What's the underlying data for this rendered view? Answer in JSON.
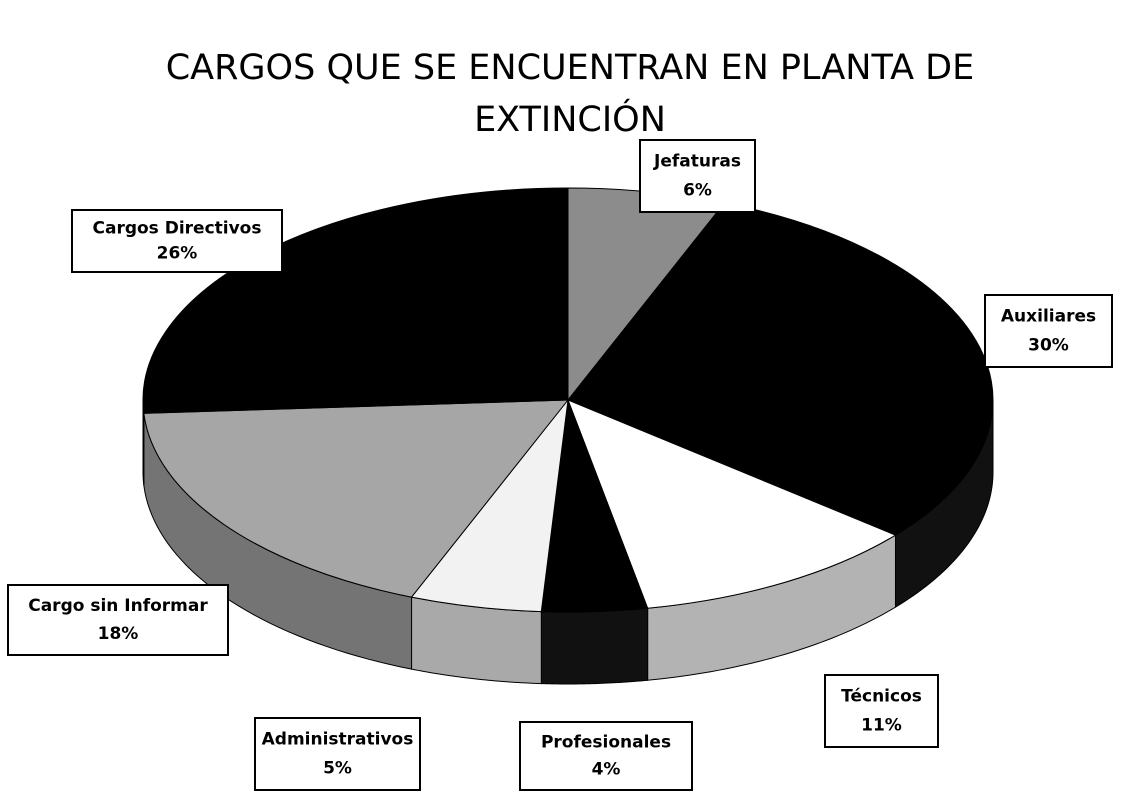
{
  "chart_data": {
    "type": "pie3d",
    "title": "CARGOS QUE SE ENCUENTRAN EN PLANTA DE EXTINCIÓN",
    "categories": [
      "Jefaturas",
      "Auxiliares",
      "Técnicos",
      "Profesionales",
      "Administrativos",
      "Cargo sin Informar",
      "Cargos Directivos"
    ],
    "values": [
      6,
      30,
      11,
      4,
      5,
      18,
      26
    ],
    "value_labels": [
      "6%",
      "30%",
      "11%",
      "4%",
      "5%",
      "18%",
      "26%"
    ],
    "colors": [
      "#8c8c8c",
      "#000000",
      "#ffffff",
      "#000000",
      "#f2f2f2",
      "#a6a6a6",
      "#000000"
    ]
  }
}
